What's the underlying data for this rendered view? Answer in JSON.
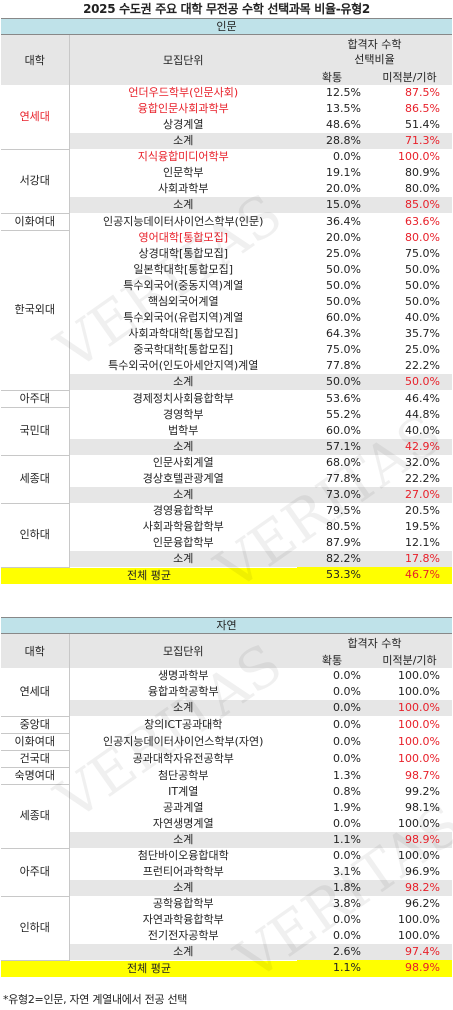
{
  "title": "2025 수도권 주요 대학 무전공 수학 선택과목 비율-유형2",
  "watermark": "VERITAS",
  "colors": {
    "header_bg": "#bfe2e9",
    "subtotal_bg": "#e6e6e6",
    "average_bg": "#ffff00",
    "highlight_text": "#e8202a"
  },
  "sections": [
    {
      "name": "인문",
      "headers": {
        "univ": "대학",
        "unit": "모집단위",
        "rate_top": "합격자 수학\n선택비율",
        "calc": "확통",
        "other": "미적분/기하"
      },
      "rows": [
        {
          "univ": "연세대",
          "span": 4,
          "univ_red": true,
          "unit": "언더우드학부(인문사회)",
          "calc": "12.5%",
          "other": "87.5%",
          "red_unit": true,
          "red_other": true
        },
        {
          "unit": "융합인문사회과학부",
          "calc": "13.5%",
          "other": "86.5%",
          "red_unit": true,
          "red_other": true
        },
        {
          "unit": "상경계열",
          "calc": "48.6%",
          "other": "51.4%"
        },
        {
          "unit": "소계",
          "calc": "28.8%",
          "other": "71.3%",
          "sub": true,
          "red_other": true
        },
        {
          "univ": "서강대",
          "span": 4,
          "unit": "지식융합미디어학부",
          "calc": "0.0%",
          "other": "100.0%",
          "red_unit": true,
          "red_other": true
        },
        {
          "unit": "인문학부",
          "calc": "19.1%",
          "other": "80.9%"
        },
        {
          "unit": "사회과학부",
          "calc": "20.0%",
          "other": "80.0%"
        },
        {
          "unit": "소계",
          "calc": "15.0%",
          "other": "85.0%",
          "sub": true,
          "red_other": true
        },
        {
          "univ": "이화여대",
          "span": 1,
          "unit": "인공지능데이터사이언스학부(인문)",
          "calc": "36.4%",
          "other": "63.6%",
          "red_other": true
        },
        {
          "univ": "한국외대",
          "span": 10,
          "unit": "영어대학[통합모집]",
          "calc": "20.0%",
          "other": "80.0%",
          "red_unit": true,
          "red_other": true
        },
        {
          "unit": "상경대학[통합모집]",
          "calc": "25.0%",
          "other": "75.0%"
        },
        {
          "unit": "일본학대학[통합모집]",
          "calc": "50.0%",
          "other": "50.0%"
        },
        {
          "unit": "특수외국어(중동지역)계열",
          "calc": "50.0%",
          "other": "50.0%"
        },
        {
          "unit": "핵심외국어계열",
          "calc": "50.0%",
          "other": "50.0%"
        },
        {
          "unit": "특수외국어(유럽지역)계열",
          "calc": "60.0%",
          "other": "40.0%"
        },
        {
          "unit": "사회과학대학[통합모집]",
          "calc": "64.3%",
          "other": "35.7%"
        },
        {
          "unit": "중국학대학[통합모집]",
          "calc": "75.0%",
          "other": "25.0%"
        },
        {
          "unit": "특수외국어(인도아세안지역)계열",
          "calc": "77.8%",
          "other": "22.2%"
        },
        {
          "unit": "소계",
          "calc": "50.0%",
          "other": "50.0%",
          "sub": true,
          "red_other": true
        },
        {
          "univ": "아주대",
          "span": 1,
          "unit": "경제정치사회융합학부",
          "calc": "53.6%",
          "other": "46.4%"
        },
        {
          "univ": "국민대",
          "span": 3,
          "unit": "경영학부",
          "calc": "55.2%",
          "other": "44.8%"
        },
        {
          "unit": "법학부",
          "calc": "60.0%",
          "other": "40.0%"
        },
        {
          "unit": "소계",
          "calc": "57.1%",
          "other": "42.9%",
          "sub": true,
          "red_other": true
        },
        {
          "univ": "세종대",
          "span": 3,
          "unit": "인문사회계열",
          "calc": "68.0%",
          "other": "32.0%"
        },
        {
          "unit": "경상호텔관광계열",
          "calc": "77.8%",
          "other": "22.2%"
        },
        {
          "unit": "소계",
          "calc": "73.0%",
          "other": "27.0%",
          "sub": true,
          "red_other": true
        },
        {
          "univ": "인하대",
          "span": 4,
          "unit": "경영융합학부",
          "calc": "79.5%",
          "other": "20.5%"
        },
        {
          "unit": "사회과학융합학부",
          "calc": "80.5%",
          "other": "19.5%"
        },
        {
          "unit": "인문융합학부",
          "calc": "87.9%",
          "other": "12.1%"
        },
        {
          "unit": "소계",
          "calc": "82.2%",
          "other": "17.8%",
          "sub": true,
          "red_other": true
        }
      ],
      "average": {
        "label": "전체 평균",
        "calc": "53.3%",
        "other": "46.7%"
      }
    },
    {
      "name": "자연",
      "headers": {
        "univ": "대학",
        "unit": "모집단위",
        "rate_top": "합격자 수학",
        "calc": "확통",
        "other": "미적분/기하"
      },
      "rows": [
        {
          "univ": "연세대",
          "span": 3,
          "unit": "생명과학부",
          "calc": "0.0%",
          "other": "100.0%"
        },
        {
          "unit": "융합과학공학부",
          "calc": "0.0%",
          "other": "100.0%"
        },
        {
          "unit": "소계",
          "calc": "0.0%",
          "other": "100.0%",
          "sub": true,
          "red_other": true
        },
        {
          "univ": "중앙대",
          "span": 1,
          "unit": "창의ICT공과대학",
          "calc": "0.0%",
          "other": "100.0%",
          "red_other": true
        },
        {
          "univ": "이화여대",
          "span": 1,
          "unit": "인공지능데이터사이언스학부(자연)",
          "calc": "0.0%",
          "other": "100.0%",
          "red_other": true
        },
        {
          "univ": "건국대",
          "span": 1,
          "unit": "공과대학자유전공학부",
          "calc": "0.0%",
          "other": "100.0%",
          "red_other": true
        },
        {
          "univ": "숙명여대",
          "span": 1,
          "unit": "첨단공학부",
          "calc": "1.3%",
          "other": "98.7%",
          "red_other": true
        },
        {
          "univ": "세종대",
          "span": 4,
          "unit": "IT계열",
          "calc": "0.8%",
          "other": "99.2%"
        },
        {
          "unit": "공과계열",
          "calc": "1.9%",
          "other": "98.1%"
        },
        {
          "unit": "자연생명계열",
          "calc": "0.0%",
          "other": "100.0%"
        },
        {
          "unit": "소계",
          "calc": "1.1%",
          "other": "98.9%",
          "sub": true,
          "red_other": true
        },
        {
          "univ": "아주대",
          "span": 3,
          "unit": "첨단바이오융합대학",
          "calc": "0.0%",
          "other": "100.0%"
        },
        {
          "unit": "프런티어과학학부",
          "calc": "3.1%",
          "other": "96.9%"
        },
        {
          "unit": "소계",
          "calc": "1.8%",
          "other": "98.2%",
          "sub": true,
          "red_other": true
        },
        {
          "univ": "인하대",
          "span": 4,
          "unit": "공학융합학부",
          "calc": "3.8%",
          "other": "96.2%"
        },
        {
          "unit": "자연과학융합학부",
          "calc": "0.0%",
          "other": "100.0%"
        },
        {
          "unit": "전기전자공학부",
          "calc": "0.0%",
          "other": "100.0%"
        },
        {
          "unit": "소계",
          "calc": "2.6%",
          "other": "97.4%",
          "sub": true,
          "red_other": true
        }
      ],
      "average": {
        "label": "전체 평균",
        "calc": "1.1%",
        "other": "98.9%"
      }
    }
  ],
  "footnote": "*유형2=인문, 자연 계열내에서 전공 선택"
}
